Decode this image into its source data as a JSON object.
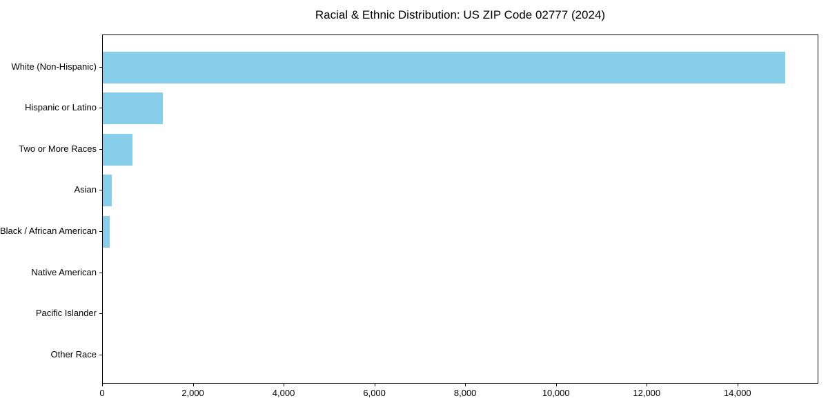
{
  "chart_data": {
    "type": "bar",
    "orientation": "horizontal",
    "title": "Racial & Ethnic Distribution: US ZIP Code 02777 (2024)",
    "categories": [
      "White (Non-Hispanic)",
      "Hispanic or Latino",
      "Two or More Races",
      "Asian",
      "Black / African American",
      "Native American",
      "Pacific Islander",
      "Other Race"
    ],
    "values": [
      15030,
      1325,
      660,
      195,
      150,
      0,
      0,
      0
    ],
    "bar_color": "#87CEEB",
    "xlabel": "",
    "ylabel": "",
    "xlim": [
      0,
      15782
    ],
    "x_ticks": [
      0,
      2000,
      4000,
      6000,
      8000,
      10000,
      12000,
      14000
    ],
    "x_tick_labels": [
      "0",
      "2,000",
      "4,000",
      "6,000",
      "8,000",
      "10,000",
      "12,000",
      "14,000"
    ],
    "grid": false,
    "legend": null,
    "background_color": "#ffffff",
    "text_color": "#000000"
  }
}
